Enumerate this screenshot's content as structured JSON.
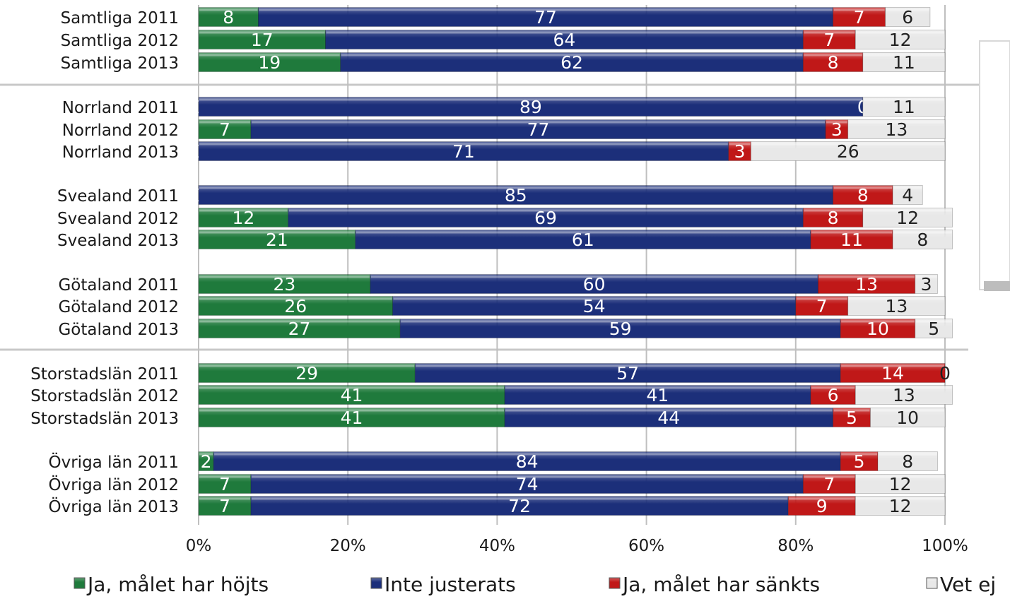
{
  "chart_data": {
    "type": "bar",
    "orientation": "horizontal",
    "stacked": "percent",
    "categories": [
      "Samtliga 2011",
      "Samtliga 2012",
      "Samtliga 2013",
      "Norrland 2011",
      "Norrland 2012",
      "Norrland 2013",
      "Svealand 2011",
      "Svealand 2012",
      "Svealand 2013",
      "Götaland 2011",
      "Götaland 2012",
      "Götaland 2013",
      "Storstadslän 2011",
      "Storstadslän 2012",
      "Storstadslän 2013",
      "Övriga län 2011",
      "Övriga län 2012",
      "Övriga län 2013"
    ],
    "series": [
      {
        "name": "Ja, målet har höjts",
        "color": "#1f7a3c",
        "values": [
          8,
          17,
          19,
          0,
          7,
          0,
          0,
          12,
          21,
          23,
          26,
          27,
          29,
          41,
          41,
          2,
          7,
          7
        ]
      },
      {
        "name": "Inte justerats",
        "color": "#1c2f7a",
        "values": [
          77,
          64,
          62,
          89,
          77,
          71,
          85,
          69,
          61,
          60,
          54,
          59,
          57,
          41,
          44,
          84,
          74,
          72
        ]
      },
      {
        "name": "Ja, målet har sänkts",
        "color": "#c01818",
        "values": [
          7,
          7,
          8,
          0,
          3,
          3,
          8,
          8,
          11,
          13,
          7,
          10,
          14,
          6,
          5,
          5,
          7,
          9
        ]
      },
      {
        "name": "Vet ej",
        "color": "#e8e8e8",
        "values": [
          6,
          12,
          11,
          11,
          13,
          26,
          4,
          12,
          8,
          3,
          13,
          5,
          0,
          13,
          10,
          8,
          12,
          12
        ]
      }
    ],
    "x_ticks": [
      "0%",
      "20%",
      "40%",
      "60%",
      "80%",
      "100%"
    ],
    "xlim": [
      0,
      100
    ],
    "grid": true,
    "legend_position": "bottom",
    "title": "",
    "xlabel": "",
    "ylabel": ""
  }
}
